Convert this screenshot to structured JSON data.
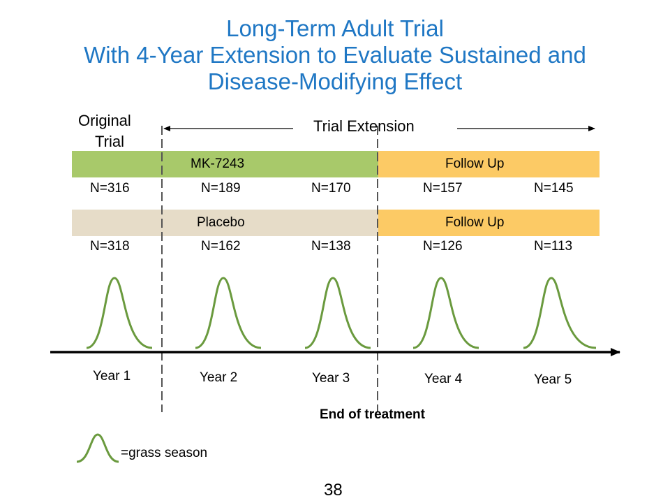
{
  "title": {
    "line1": "Long-Term Adult Trial",
    "line2": "With 4-Year Extension to Evaluate Sustained and",
    "line3": "Disease-Modifying Effect"
  },
  "labels": {
    "original_trial_line1": "Original",
    "original_trial_line2": "Trial",
    "trial_extension": "Trial Extension",
    "end_of_treatment": "End of treatment",
    "legend": "=grass season",
    "page_number": "38"
  },
  "treatment_bar": {
    "label": "MK-7243",
    "followup_label": "Follow Up",
    "counts": [
      "N=316",
      "N=189",
      "N=170",
      "N=157",
      "N=145"
    ]
  },
  "placebo_bar": {
    "label": "Placebo",
    "followup_label": "Follow Up",
    "counts": [
      "N=318",
      "N=162",
      "N=138",
      "N=126",
      "N=113"
    ]
  },
  "years": [
    "Year 1",
    "Year 2",
    "Year 3",
    "Year 4",
    "Year 5"
  ],
  "colors": {
    "title": "#1f77c4",
    "treatment": "#a8c96a",
    "placebo": "#e6dcc8",
    "followup": "#fcca65",
    "season_curve": "#6a9a3e"
  }
}
